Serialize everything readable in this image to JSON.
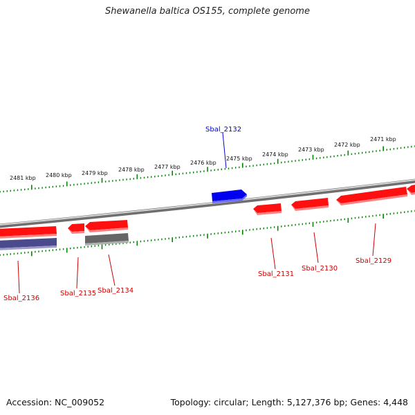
{
  "title": "Shewanella baltica OS155, complete genome",
  "footer": {
    "accession": "Accession: NC_009052",
    "summary": "Topology: circular; Length: 5,127,376 bp; Genes: 4,448"
  },
  "colors": {
    "forward_gene": "#ff0000",
    "reverse_gene": "#ff0000",
    "selected_gene": "#0000ee",
    "other_gene": "#4a4a8c",
    "pseudo_gene": "#666666",
    "label_red": "#cc0000",
    "label_blue": "#0000cc",
    "tick_green": "#008800",
    "backbone": "#9a9a9a"
  },
  "scale_labels": [
    "2481 kbp",
    "2480 kbp",
    "2479 kbp",
    "2478 kbp",
    "2477 kbp",
    "2476 kbp",
    "2475 kbp",
    "2474 kbp",
    "2473 kbp",
    "2472 kbp",
    "2471 kbp"
  ],
  "genes": [
    {
      "id": "Sbal_2136",
      "strand": "reverse",
      "color_key": "forward_gene"
    },
    {
      "id": "Sbal_2136_lower",
      "strand": "reverse",
      "color_key": "other_gene"
    },
    {
      "id": "Sbal_2135",
      "strand": "reverse",
      "color_key": "forward_gene"
    },
    {
      "id": "Sbal_2134",
      "strand": "reverse",
      "color_key": "forward_gene"
    },
    {
      "id": "Sbal_2134_lower",
      "strand": "reverse",
      "color_key": "pseudo_gene"
    },
    {
      "id": "Sbal_2132",
      "strand": "forward",
      "color_key": "selected_gene"
    },
    {
      "id": "Sbal_2131",
      "strand": "reverse",
      "color_key": "forward_gene"
    },
    {
      "id": "Sbal_2130",
      "strand": "reverse",
      "color_key": "forward_gene"
    },
    {
      "id": "Sbal_2129",
      "strand": "reverse",
      "color_key": "forward_gene"
    },
    {
      "id": "Sbal_2128",
      "strand": "reverse",
      "color_key": "forward_gene"
    }
  ],
  "gene_labels": [
    {
      "text": "Sbal_2132",
      "color_key": "label_blue"
    },
    {
      "text": "Sbal_2136",
      "color_key": "label_red"
    },
    {
      "text": "Sbal_2135",
      "color_key": "label_red"
    },
    {
      "text": "Sbal_2134",
      "color_key": "label_red"
    },
    {
      "text": "Sbal_2131",
      "color_key": "label_red"
    },
    {
      "text": "Sbal_2130",
      "color_key": "label_red"
    },
    {
      "text": "Sbal_2129",
      "color_key": "label_red"
    }
  ]
}
